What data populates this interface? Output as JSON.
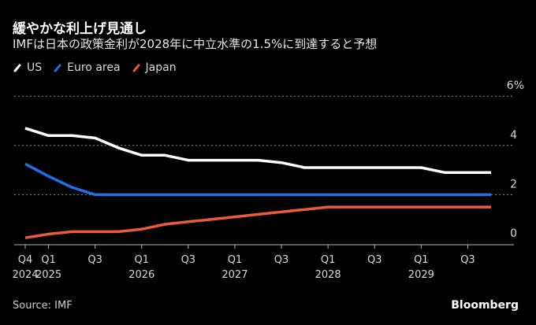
{
  "header": {
    "title": "緩やかな利上げ見通し",
    "subtitle": "IMFは日本の政策金利が2028年に中立水準の1.5%に到達すると予想"
  },
  "footer": {
    "source": "Source: IMF",
    "brand": "Bloomberg"
  },
  "chart_data": {
    "type": "line",
    "title": "緩やかな利上げ見通し",
    "subtitle": "IMFは日本の政策金利が2028年に中立水準の1.5%に到達すると予想",
    "xlabel": "",
    "ylabel": "",
    "ylim": [
      0,
      6
    ],
    "y_ticks": [
      {
        "value": 0,
        "label": "0"
      },
      {
        "value": 2,
        "label": "2"
      },
      {
        "value": 4,
        "label": "4"
      },
      {
        "value": 6,
        "label": "6%"
      }
    ],
    "grid": true,
    "legend_position": "top-left",
    "x": [
      "Q4 2024",
      "Q1 2025",
      "Q2 2025",
      "Q3 2025",
      "Q4 2025",
      "Q1 2026",
      "Q2 2026",
      "Q3 2026",
      "Q4 2026",
      "Q1 2027",
      "Q2 2027",
      "Q3 2027",
      "Q4 2027",
      "Q1 2028",
      "Q2 2028",
      "Q3 2028",
      "Q4 2028",
      "Q1 2029",
      "Q2 2029",
      "Q3 2029",
      "Q4 2029"
    ],
    "x_ticks": [
      {
        "index": 0,
        "line1": "Q4",
        "line2": "2024"
      },
      {
        "index": 1,
        "line1": "Q1",
        "line2": "2025"
      },
      {
        "index": 3,
        "line1": "Q3",
        "line2": ""
      },
      {
        "index": 5,
        "line1": "Q1",
        "line2": "2026"
      },
      {
        "index": 7,
        "line1": "Q3",
        "line2": ""
      },
      {
        "index": 9,
        "line1": "Q1",
        "line2": "2027"
      },
      {
        "index": 11,
        "line1": "Q3",
        "line2": ""
      },
      {
        "index": 13,
        "line1": "Q1",
        "line2": "2028"
      },
      {
        "index": 15,
        "line1": "Q3",
        "line2": ""
      },
      {
        "index": 17,
        "line1": "Q1",
        "line2": "2029"
      },
      {
        "index": 19,
        "line1": "Q3",
        "line2": ""
      }
    ],
    "series": [
      {
        "name": "US",
        "color": "#ffffff",
        "values": [
          4.7,
          4.4,
          4.4,
          4.3,
          3.9,
          3.6,
          3.6,
          3.4,
          3.4,
          3.4,
          3.4,
          3.3,
          3.1,
          3.1,
          3.1,
          3.1,
          3.1,
          3.1,
          2.9,
          2.9,
          2.9
        ]
      },
      {
        "name": "Euro area",
        "color": "#1f6fe5",
        "values": [
          3.25,
          2.75,
          2.3,
          2.0,
          2.0,
          2.0,
          2.0,
          2.0,
          2.0,
          2.0,
          2.0,
          2.0,
          2.0,
          2.0,
          2.0,
          2.0,
          2.0,
          2.0,
          2.0,
          2.0,
          2.0
        ]
      },
      {
        "name": "Japan",
        "color": "#ee5a35",
        "values": [
          0.25,
          0.4,
          0.5,
          0.5,
          0.5,
          0.6,
          0.8,
          0.9,
          1.0,
          1.1,
          1.2,
          1.3,
          1.4,
          1.5,
          1.5,
          1.5,
          1.5,
          1.5,
          1.5,
          1.5,
          1.5
        ]
      }
    ]
  }
}
